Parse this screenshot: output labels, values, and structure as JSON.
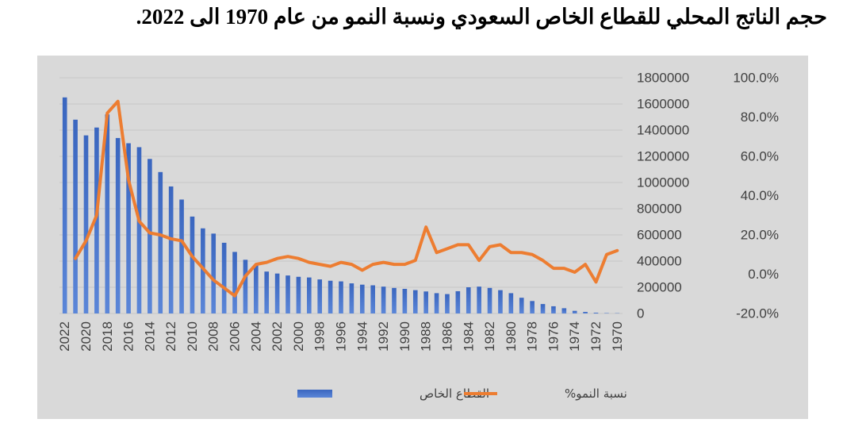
{
  "title": "حجم الناتج المحلي للقطاع الخاص السعودي ونسبة النمو من عام 1970 الى 2022.",
  "chart_data": {
    "type": "bar+line",
    "x": [
      2022,
      2021,
      2020,
      2019,
      2018,
      2017,
      2016,
      2015,
      2014,
      2013,
      2012,
      2011,
      2010,
      2009,
      2008,
      2007,
      2006,
      2005,
      2004,
      2003,
      2002,
      2001,
      2000,
      1999,
      1998,
      1997,
      1996,
      1995,
      1994,
      1993,
      1992,
      1991,
      1990,
      1989,
      1988,
      1987,
      1986,
      1985,
      1984,
      1983,
      1982,
      1981,
      1980,
      1979,
      1978,
      1977,
      1976,
      1975,
      1974,
      1973,
      1972,
      1971,
      1970
    ],
    "x_tick_labels": [
      "2022",
      "2020",
      "2018",
      "2016",
      "2014",
      "2012",
      "2010",
      "2008",
      "2006",
      "2004",
      "2002",
      "2000",
      "1998",
      "1996",
      "1994",
      "1992",
      "1990",
      "1988",
      "1986",
      "1984",
      "1982",
      "1980",
      "1978",
      "1976",
      "1974",
      "1972",
      "1970"
    ],
    "series": [
      {
        "name": "القطاع الخاص",
        "type": "bar",
        "axis": "left",
        "color": "#4472c4",
        "values": [
          1650000,
          1480000,
          1360000,
          1420000,
          1520000,
          1340000,
          1300000,
          1270000,
          1180000,
          1080000,
          970000,
          870000,
          740000,
          650000,
          610000,
          540000,
          470000,
          410000,
          370000,
          320000,
          305000,
          290000,
          280000,
          275000,
          260000,
          250000,
          245000,
          230000,
          220000,
          215000,
          205000,
          195000,
          188000,
          178000,
          168000,
          155000,
          148000,
          170000,
          200000,
          205000,
          195000,
          178000,
          155000,
          120000,
          95000,
          72000,
          55000,
          40000,
          20000,
          12000,
          6000,
          3000,
          2000
        ]
      },
      {
        "name": "نسبة النمو%",
        "type": "line",
        "axis": "right",
        "color": "#ed7d31",
        "values": [
          null,
          8,
          17,
          30,
          82,
          88,
          48,
          27,
          21,
          20,
          18,
          17,
          9,
          3,
          -3,
          -7,
          -11,
          -1,
          5,
          6,
          8,
          9,
          8,
          6,
          5,
          4,
          6,
          5,
          2,
          5,
          6,
          5,
          5,
          7,
          24,
          11,
          13,
          15,
          15,
          7,
          14,
          15,
          11,
          11,
          10,
          7,
          3,
          3,
          1,
          5,
          -4,
          10,
          12
        ]
      }
    ],
    "y_left": {
      "min": 0,
      "max": 1800000,
      "ticks": [
        "0",
        "200000",
        "400000",
        "600000",
        "800000",
        "1000000",
        "1200000",
        "1400000",
        "1600000",
        "1800000"
      ]
    },
    "y_right": {
      "min": -20,
      "max": 100,
      "ticks": [
        "-20.0%",
        "0.0%",
        "20.0%",
        "40.0%",
        "60.0%",
        "80.0%",
        "100.0%"
      ]
    },
    "grid": true,
    "legend_position": "bottom"
  }
}
